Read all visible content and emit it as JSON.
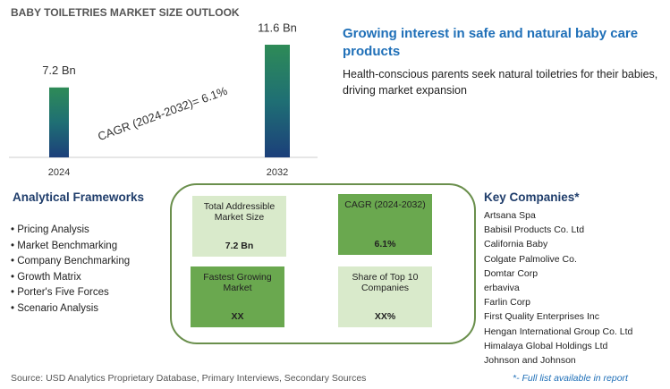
{
  "chart_data": {
    "type": "bar",
    "title": "BABY TOILETRIES MARKET SIZE OUTLOOK",
    "categories": [
      "2024",
      "2032"
    ],
    "values": [
      7.2,
      11.6
    ],
    "value_labels": [
      "7.2 Bn",
      "11.6 Bn"
    ],
    "color": "#2a7a6a",
    "annotation": "CAGR (2024-2032)=  6.1%"
  },
  "headline": {
    "title": "Growing interest in safe and natural baby care products",
    "text": "Health-conscious parents seek natural toiletries for their babies, driving market expansion"
  },
  "frameworks": {
    "title": "Analytical Frameworks",
    "items": [
      "Pricing Analysis",
      "Market Benchmarking",
      "Company Benchmarking",
      "Growth Matrix",
      "Porter's Five Forces",
      "Scenario Analysis"
    ]
  },
  "boxes": [
    {
      "label": "Total Addressible Market Size",
      "value": "7.2 Bn"
    },
    {
      "label": "CAGR (2024-2032)",
      "value": "6.1%"
    },
    {
      "label": "Fastest Growing Market",
      "value": "XX"
    },
    {
      "label": "Share of Top 10 Companies",
      "value": "XX%"
    }
  ],
  "companies": {
    "title": "Key Companies*",
    "items": [
      "Artsana Spa",
      "Babisil Products Co. Ltd",
      "California Baby",
      "Colgate Palmolive Co.",
      "Domtar Corp",
      "erbaviva",
      "Farlin Corp",
      "First Quality Enterprises Inc",
      "Hengan International Group Co. Ltd",
      "Himalaya Global Holdings Ltd",
      "Johnson and Johnson"
    ],
    "note": "*- Full list available in report"
  },
  "source": "Source: USD Analytics Proprietary Database, Primary Interviews, Secondary Sources"
}
